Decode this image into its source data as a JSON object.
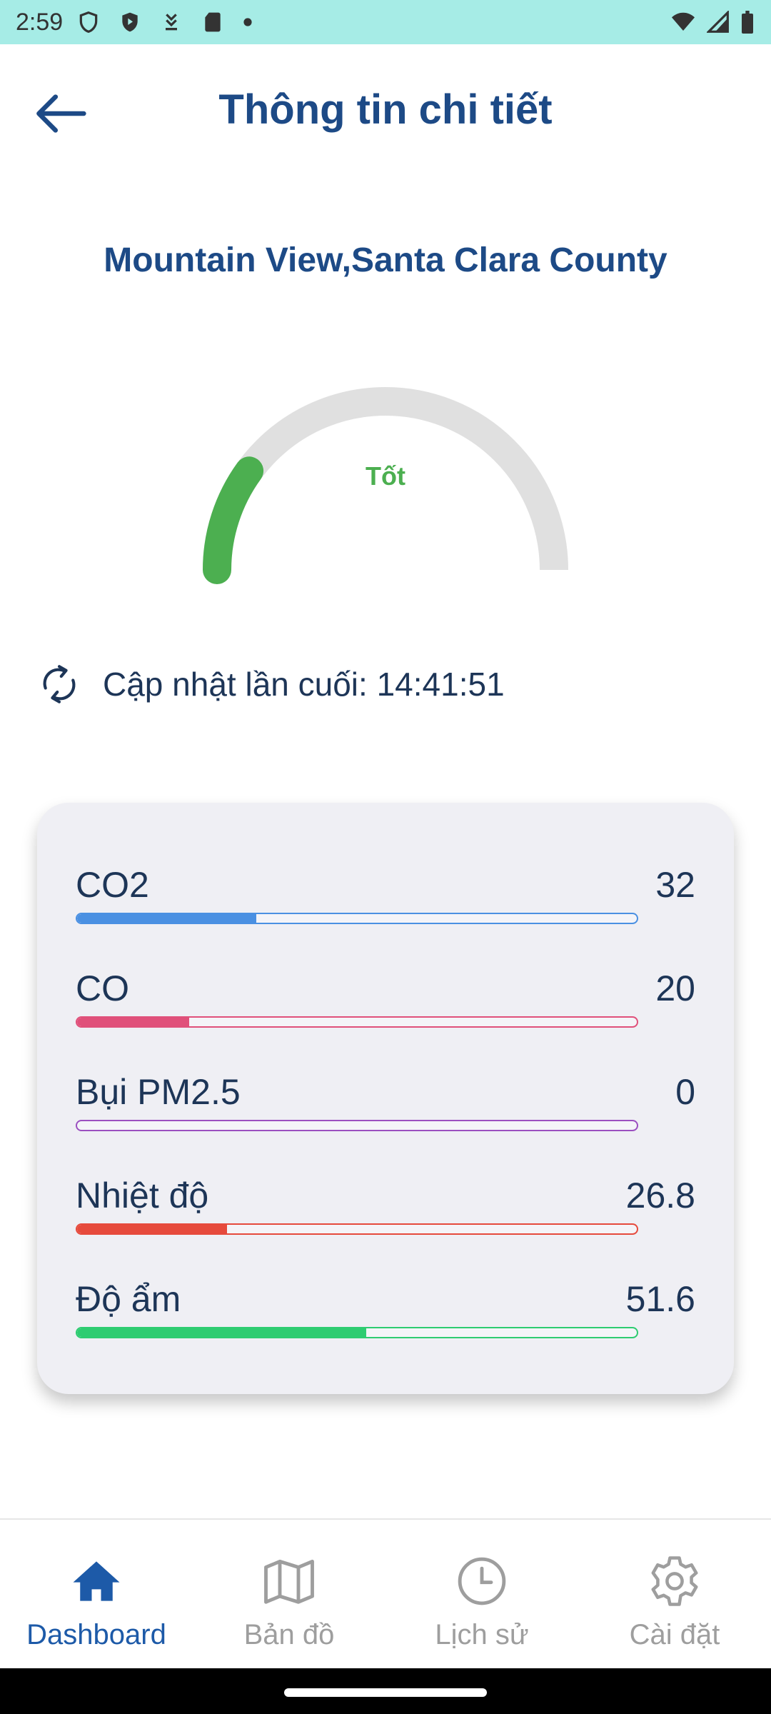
{
  "status_bar": {
    "time": "2:59",
    "left_icons": [
      "shield-outline-icon",
      "shield-play-icon",
      "download-icon",
      "sd-card-icon",
      "dot-icon"
    ],
    "right_icons": [
      "wifi-icon",
      "signal-icon",
      "battery-icon"
    ]
  },
  "header": {
    "title": "Thông tin chi tiết",
    "back_icon": "arrow-left-icon"
  },
  "location": "Mountain View,Santa Clara County",
  "gauge": {
    "label": "Tốt",
    "level": 0.2,
    "color": "#4caf50",
    "track_color": "#e0e0e0"
  },
  "update": {
    "text": "Cập nhật lần cuối: 14:41:51",
    "icon": "refresh-icon"
  },
  "metrics": [
    {
      "name": "CO2",
      "value": "32",
      "level": 0.32,
      "color": "#4a90e2"
    },
    {
      "name": "CO",
      "value": "20",
      "level": 0.2,
      "color": "#e0507a"
    },
    {
      "name": "Bụi PM2.5",
      "value": "0",
      "level": 0.0,
      "color": "#9b4fc0"
    },
    {
      "name": "Nhiệt độ",
      "value": "26.8",
      "level": 0.268,
      "color": "#e64a3c"
    },
    {
      "name": "Độ ẩm",
      "value": "51.6",
      "level": 0.516,
      "color": "#2ecc71"
    }
  ],
  "bottom_nav": [
    {
      "label": "Dashboard",
      "icon": "home-icon",
      "active": true
    },
    {
      "label": "Bản đồ",
      "icon": "map-icon",
      "active": false
    },
    {
      "label": "Lịch sử",
      "icon": "clock-icon",
      "active": false
    },
    {
      "label": "Cài đặt",
      "icon": "gear-icon",
      "active": false
    }
  ]
}
